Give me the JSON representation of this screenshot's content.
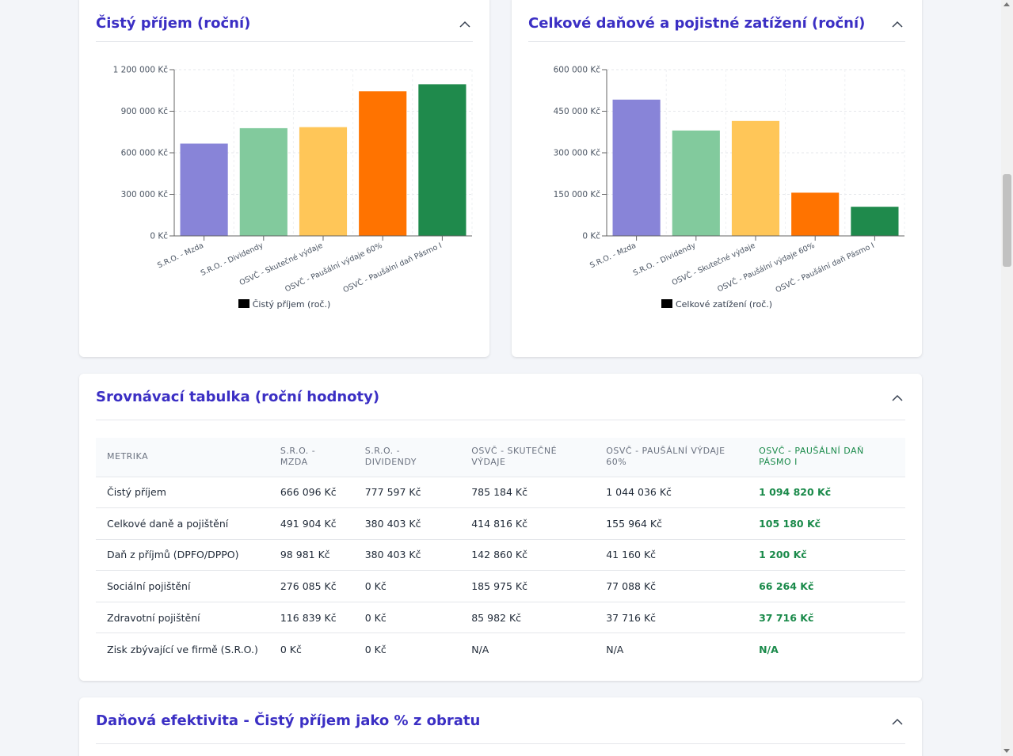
{
  "charts": [
    {
      "title": "Čistý příjem (roční)",
      "legend": "Čistý příjem (roč.)",
      "chart_data": {
        "type": "bar",
        "categories": [
          "S.R.O. - Mzda",
          "S.R.O. - Dividendy",
          "OSVČ - Skutečné výdaje",
          "OSVČ - Paušální výdaje 60%",
          "OSVČ - Paušální daň Pásmo I"
        ],
        "values": [
          666096,
          777597,
          785184,
          1044036,
          1094820
        ],
        "colors": [
          "#8884d8",
          "#82ca9d",
          "#ffc658",
          "#ff7300",
          "#1f8a4c"
        ],
        "ylim": [
          0,
          1200000
        ],
        "yticks": [
          "0 Kč",
          "300 000 Kč",
          "600 000 Kč",
          "900 000 Kč",
          "1 200 000 Kč"
        ],
        "ytick_values": [
          0,
          300000,
          600000,
          900000,
          1200000
        ],
        "grid": true
      }
    },
    {
      "title": "Celkové daňové a pojistné zatížení (roční)",
      "legend": "Celkové zatížení (roč.)",
      "chart_data": {
        "type": "bar",
        "categories": [
          "S.R.O. - Mzda",
          "S.R.O. - Dividendy",
          "OSVČ - Skutečné výdaje",
          "OSVČ - Paušální výdaje 60%",
          "OSVČ - Paušální daň Pásmo I"
        ],
        "values": [
          491904,
          380403,
          414816,
          155964,
          105180
        ],
        "colors": [
          "#8884d8",
          "#82ca9d",
          "#ffc658",
          "#ff7300",
          "#1f8a4c"
        ],
        "ylim": [
          0,
          600000
        ],
        "yticks": [
          "0 Kč",
          "150 000 Kč",
          "300 000 Kč",
          "450 000 Kč",
          "600 000 Kč"
        ],
        "ytick_values": [
          0,
          150000,
          300000,
          450000,
          600000
        ],
        "grid": true
      }
    }
  ],
  "table_card": {
    "title": "Srovnávací tabulka (roční hodnoty)",
    "columns": [
      "Metrika",
      "S.R.O. - Mzda",
      "S.R.O. - Dividendy",
      "OSVČ - Skutečné výdaje",
      "OSVČ - Paušální výdaje 60%",
      "OSVČ - Paušální daň Pásmo I"
    ],
    "rows": [
      [
        "Čistý příjem",
        "666 096 Kč",
        "777 597 Kč",
        "785 184 Kč",
        "1 044 036 Kč",
        "1 094 820 Kč"
      ],
      [
        "Celkové daně a pojištění",
        "491 904 Kč",
        "380 403 Kč",
        "414 816 Kč",
        "155 964 Kč",
        "105 180 Kč"
      ],
      [
        "Daň z příjmů (DPFO/DPPO)",
        "98 981 Kč",
        "380 403 Kč",
        "142 860 Kč",
        "41 160 Kč",
        "1 200 Kč"
      ],
      [
        "Sociální pojištění",
        "276 085 Kč",
        "0 Kč",
        "185 975 Kč",
        "77 088 Kč",
        "66 264 Kč"
      ],
      [
        "Zdravotní pojištění",
        "116 839 Kč",
        "0 Kč",
        "85 982 Kč",
        "37 716 Kč",
        "37 716 Kč"
      ],
      [
        "Zisk zbývající ve firmě (S.R.O.)",
        "0 Kč",
        "0 Kč",
        "N/A",
        "N/A",
        "N/A"
      ]
    ]
  },
  "efficiency_card": {
    "title": "Daňová efektivita - Čistý příjem jako % z obratu"
  },
  "colors": {
    "accent": "#3b2fc4",
    "best": "#1a8a4a"
  },
  "icons": {
    "collapse": "chevron-up-icon"
  }
}
